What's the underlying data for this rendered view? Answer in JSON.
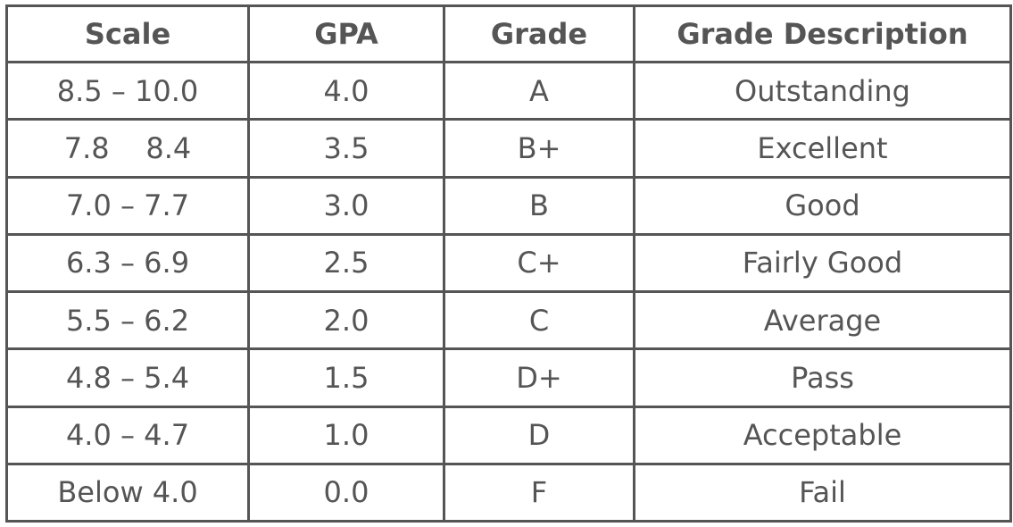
{
  "table": {
    "headers": {
      "scale": "Scale",
      "gpa": "GPA",
      "grade": "Grade",
      "description": "Grade Description"
    },
    "rows": [
      {
        "scale": "8.5 – 10.0",
        "gpa": "4.0",
        "grade": "A",
        "description": "Outstanding"
      },
      {
        "scale": "7.8    8.4",
        "gpa": "3.5",
        "grade": "B+",
        "description": "Excellent"
      },
      {
        "scale": "7.0 – 7.7",
        "gpa": "3.0",
        "grade": "B",
        "description": "Good"
      },
      {
        "scale": "6.3 – 6.9",
        "gpa": "2.5",
        "grade": "C+",
        "description": "Fairly Good"
      },
      {
        "scale": "5.5 – 6.2",
        "gpa": "2.0",
        "grade": "C",
        "description": "Average"
      },
      {
        "scale": "4.8 – 5.4",
        "gpa": "1.5",
        "grade": "D+",
        "description": "Pass"
      },
      {
        "scale": "4.0 – 4.7",
        "gpa": "1.0",
        "grade": "D",
        "description": "Acceptable"
      },
      {
        "scale": "Below 4.0",
        "gpa": "0.0",
        "grade": "F",
        "description": "Fail"
      }
    ]
  },
  "colors": {
    "text": "#555555",
    "border": "#555555",
    "background": "#ffffff"
  }
}
